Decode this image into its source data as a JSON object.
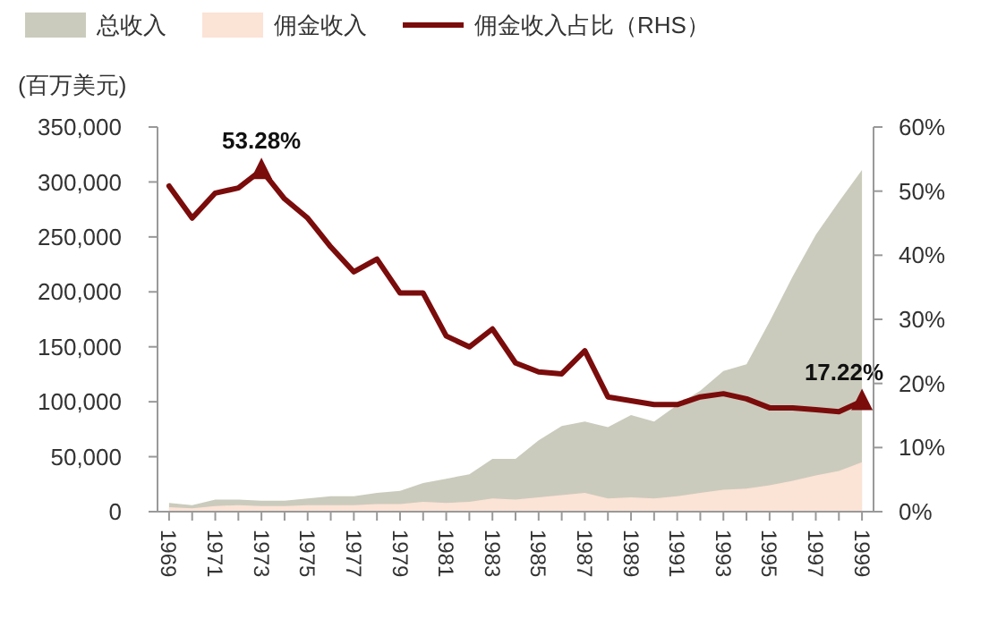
{
  "chart_data": {
    "type": "area",
    "ylabel": "(百万美元)",
    "x": [
      1969,
      1970,
      1971,
      1972,
      1973,
      1974,
      1975,
      1976,
      1977,
      1978,
      1979,
      1980,
      1981,
      1982,
      1983,
      1984,
      1985,
      1986,
      1987,
      1988,
      1989,
      1990,
      1991,
      1992,
      1993,
      1994,
      1995,
      1996,
      1997,
      1998,
      1999
    ],
    "series": [
      {
        "name": "总收入",
        "color": "#cbcbbd",
        "values": [
          8000,
          6000,
          11000,
          11000,
          10000,
          10000,
          12000,
          14000,
          14000,
          17000,
          19000,
          26000,
          30000,
          34000,
          48000,
          48000,
          65000,
          78000,
          82000,
          77000,
          88000,
          82000,
          97000,
          110000,
          128000,
          134000,
          173000,
          214000,
          252000,
          282000,
          311000
        ]
      },
      {
        "name": "佣金收入",
        "color": "#fbe3d6",
        "values": [
          4000,
          3000,
          5000,
          6000,
          5000,
          5000,
          6000,
          6000,
          6000,
          7000,
          7000,
          9000,
          8000,
          9000,
          12000,
          11000,
          13000,
          15000,
          17000,
          12000,
          13000,
          12000,
          14000,
          17000,
          20000,
          21000,
          24000,
          28000,
          33000,
          37000,
          45000
        ]
      },
      {
        "name": "佣金收入占比（RHS）",
        "type": "line",
        "axis": "y2",
        "color": "#7b0c0c",
        "values": [
          50.8,
          45.8,
          49.7,
          50.5,
          53.28,
          48.8,
          45.8,
          41.3,
          37.4,
          39.4,
          34.1,
          34.1,
          27.4,
          25.7,
          28.5,
          23.2,
          21.8,
          21.5,
          25.1,
          17.9,
          17.3,
          16.7,
          16.7,
          17.9,
          18.4,
          17.6,
          16.2,
          16.2,
          15.9,
          15.6,
          17.22
        ],
        "value_labels": [
          null,
          null,
          null,
          null,
          "53.28%",
          null,
          null,
          null,
          null,
          null,
          null,
          null,
          null,
          null,
          null,
          null,
          null,
          null,
          null,
          null,
          null,
          null,
          null,
          null,
          null,
          null,
          null,
          null,
          null,
          null,
          "17.22%"
        ]
      }
    ],
    "xlim": [
      1968.5,
      1999.5
    ],
    "xticks": [
      1969,
      {
        "value": 1970,
        "label": null
      },
      1971,
      {
        "value": 1972,
        "label": null
      },
      1973,
      {
        "value": 1974,
        "label": null
      },
      1975,
      {
        "value": 1976,
        "label": null
      },
      1977,
      {
        "value": 1978,
        "label": null
      },
      1979,
      {
        "value": 1980,
        "label": null
      },
      1981,
      {
        "value": 1982,
        "label": null
      },
      1983,
      {
        "value": 1984,
        "label": null
      },
      1985,
      {
        "value": 1986,
        "label": null
      },
      1987,
      {
        "value": 1988,
        "label": null
      },
      1989,
      {
        "value": 1990,
        "label": null
      },
      1991,
      {
        "value": 1992,
        "label": null
      },
      1993,
      {
        "value": 1994,
        "label": null
      },
      1995,
      {
        "value": 1996,
        "label": null
      },
      1997,
      {
        "value": 1998,
        "label": null
      },
      1999
    ],
    "ylim": [
      0,
      350000
    ],
    "yticks": [
      {
        "value": 0,
        "label": "0"
      },
      {
        "value": 50000,
        "label": "50,000"
      },
      {
        "value": 100000,
        "label": "100,000"
      },
      {
        "value": 150000,
        "label": "150,000"
      },
      {
        "value": 200000,
        "label": "200,000"
      },
      {
        "value": 250000,
        "label": "250,000"
      },
      {
        "value": 300000,
        "label": "300,000"
      },
      {
        "value": 350000,
        "label": "350,000"
      }
    ],
    "y2lim": [
      0,
      60
    ],
    "y2ticks": [
      {
        "value": 0,
        "label": "0%"
      },
      {
        "value": 10,
        "label": "10%"
      },
      {
        "value": 20,
        "label": "20%"
      },
      {
        "value": 30,
        "label": "30%"
      },
      {
        "value": 40,
        "label": "40%"
      },
      {
        "value": 50,
        "label": "50%"
      },
      {
        "value": 60,
        "label": "60%"
      }
    ],
    "legend": "top",
    "grid": false,
    "marker": "none",
    "line_style": "solid"
  }
}
